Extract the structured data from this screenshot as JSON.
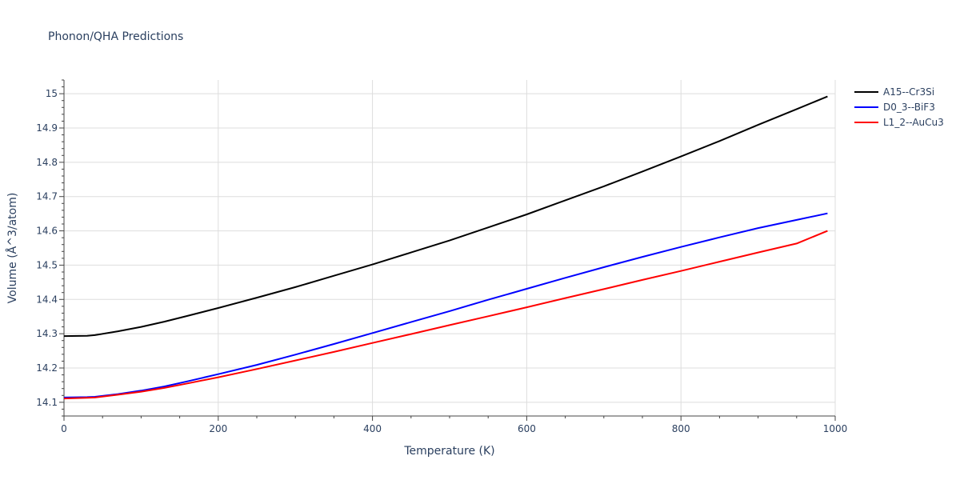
{
  "chart_data": {
    "type": "line",
    "title": "Phonon/QHA Predictions",
    "xlabel": "Temperature (K)",
    "ylabel": "Volume (Å^3/atom)",
    "xlim": [
      0,
      1000
    ],
    "ylim": [
      14.06,
      15.04
    ],
    "x_ticks": [
      0,
      200,
      400,
      600,
      800,
      1000
    ],
    "y_ticks": [
      14.1,
      14.2,
      14.3,
      14.4,
      14.5,
      14.6,
      14.7,
      14.8,
      14.9,
      15
    ],
    "grid": true,
    "legend_position": "top-right",
    "series": [
      {
        "name": "A15--Cr3Si",
        "color": "#000000",
        "x": [
          0,
          30,
          40,
          70,
          100,
          130,
          160,
          200,
          250,
          300,
          350,
          400,
          450,
          500,
          550,
          600,
          650,
          700,
          750,
          800,
          850,
          900,
          950,
          990
        ],
        "y": [
          14.293,
          14.294,
          14.296,
          14.307,
          14.32,
          14.335,
          14.352,
          14.375,
          14.405,
          14.436,
          14.469,
          14.502,
          14.537,
          14.572,
          14.61,
          14.648,
          14.689,
          14.73,
          14.773,
          14.817,
          14.862,
          14.909,
          14.955,
          14.992
        ]
      },
      {
        "name": "D0_3--BiF3",
        "color": "#0000ff",
        "x": [
          0,
          30,
          40,
          70,
          100,
          130,
          160,
          200,
          250,
          300,
          350,
          400,
          450,
          500,
          550,
          600,
          650,
          700,
          750,
          800,
          850,
          900,
          950,
          990
        ],
        "y": [
          14.114,
          14.115,
          14.116,
          14.124,
          14.134,
          14.146,
          14.161,
          14.182,
          14.209,
          14.239,
          14.27,
          14.302,
          14.334,
          14.366,
          14.399,
          14.431,
          14.463,
          14.494,
          14.524,
          14.553,
          14.581,
          14.608,
          14.632,
          14.651
        ]
      },
      {
        "name": "L1_2--AuCu3",
        "color": "#ff0000",
        "x": [
          0,
          30,
          40,
          70,
          100,
          130,
          160,
          200,
          250,
          300,
          350,
          400,
          450,
          500,
          550,
          600,
          650,
          700,
          750,
          800,
          850,
          900,
          950,
          990
        ],
        "y": [
          14.111,
          14.113,
          14.114,
          14.122,
          14.131,
          14.142,
          14.155,
          14.173,
          14.197,
          14.222,
          14.247,
          14.273,
          14.299,
          14.325,
          14.351,
          14.377,
          14.404,
          14.43,
          14.457,
          14.483,
          14.51,
          14.537,
          14.563,
          14.6
        ]
      }
    ]
  }
}
